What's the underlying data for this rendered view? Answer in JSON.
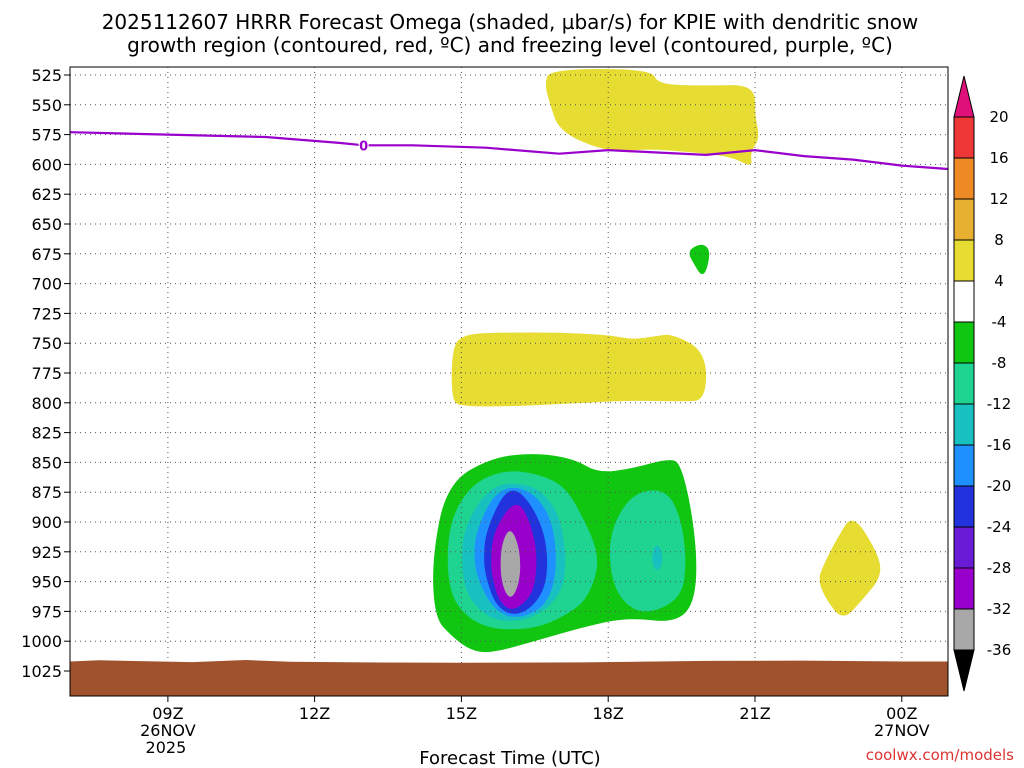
{
  "chart_data": {
    "type": "time-height contour",
    "title_line1": "2025112607 HRRR Forecast Omega (shaded, µbar/s) for KPIE with dendritic snow",
    "title_line2": "growth region (contoured, red, ºC) and freezing level (contoured, purple, ºC)",
    "xlabel": "Forecast Time (UTC)",
    "x_range_hours": [
      7,
      25
    ],
    "y_range_hpa": [
      520,
      1025
    ],
    "grid": true,
    "y_ticks": [
      525,
      550,
      575,
      600,
      625,
      650,
      675,
      700,
      725,
      750,
      775,
      800,
      825,
      850,
      875,
      900,
      925,
      950,
      975,
      1000,
      1025
    ],
    "y_tick_labels": [
      "525",
      "550",
      "575",
      "600",
      "625",
      "650",
      "675",
      "700",
      "725",
      "750",
      "775",
      "800",
      "825",
      "850",
      "875",
      "900",
      "925",
      "950",
      "975",
      "1000",
      "1025"
    ],
    "x_ticks": [
      {
        "hour": 9,
        "label": "09Z",
        "date": "26NOV",
        "year": "2025"
      },
      {
        "hour": 12,
        "label": "12Z",
        "date": "",
        "year": ""
      },
      {
        "hour": 15,
        "label": "15Z",
        "date": "",
        "year": ""
      },
      {
        "hour": 18,
        "label": "18Z",
        "date": "",
        "year": ""
      },
      {
        "hour": 21,
        "label": "21Z",
        "date": "",
        "year": ""
      },
      {
        "hour": 24,
        "label": "00Z",
        "date": "27NOV",
        "year": ""
      }
    ],
    "freezing_level": {
      "label": "0",
      "color": "#9900cc",
      "points": [
        [
          7.0,
          573
        ],
        [
          9.0,
          575
        ],
        [
          11.0,
          577
        ],
        [
          12.5,
          582
        ],
        [
          13.0,
          584
        ],
        [
          14.0,
          584
        ],
        [
          15.5,
          586
        ],
        [
          17.0,
          591
        ],
        [
          18.0,
          588
        ],
        [
          19.0,
          590
        ],
        [
          20.0,
          592
        ],
        [
          21.0,
          588
        ],
        [
          22.0,
          593
        ],
        [
          23.0,
          596
        ],
        [
          24.0,
          601
        ],
        [
          25.0,
          604
        ]
      ]
    },
    "colorbar": {
      "levels": [
        -36,
        -32,
        -28,
        -24,
        -20,
        -16,
        -12,
        -8,
        -4,
        4,
        8,
        12,
        16,
        20
      ],
      "labels": [
        "-36",
        "-32",
        "-28",
        "-24",
        "-20",
        "-16",
        "-12",
        "-8",
        "-4",
        "4",
        "8",
        "12",
        "16",
        "20"
      ],
      "colors": [
        "#a8a8a8",
        "#9900cc",
        "#6a1bd6",
        "#2233dd",
        "#1e90ff",
        "#18c0c0",
        "#1ed490",
        "#11c611",
        "#ffffff",
        "#e6dc32",
        "#e8b030",
        "#ee8a26",
        "#ee3838"
      ],
      "under_color": "#000000",
      "over_color": "#e0107a"
    },
    "shaded_regions": [
      {
        "name": "upper-ascent",
        "value": 4,
        "color": "#e6dc32",
        "points": [
          [
            16.8,
            520
          ],
          [
            18.9,
            520
          ],
          [
            19.0,
            533
          ],
          [
            20.0,
            534
          ],
          [
            21.0,
            533
          ],
          [
            21.0,
            560
          ],
          [
            21.1,
            578
          ],
          [
            20.9,
            590
          ],
          [
            20.95,
            603
          ],
          [
            20.5,
            593
          ],
          [
            19.5,
            589
          ],
          [
            18.8,
            587
          ],
          [
            18.0,
            590
          ],
          [
            17.0,
            573
          ],
          [
            16.8,
            548
          ],
          [
            16.7,
            533
          ]
        ]
      },
      {
        "name": "small-descent-700",
        "value": -6,
        "color": "#11c611",
        "points": [
          [
            19.7,
            670
          ],
          [
            19.95,
            666
          ],
          [
            20.1,
            674
          ],
          [
            19.95,
            697
          ],
          [
            19.7,
            680
          ],
          [
            19.65,
            675
          ]
        ]
      },
      {
        "name": "mid-ascent-775",
        "value": 5,
        "color": "#e6dc32",
        "points": [
          [
            14.8,
            757
          ],
          [
            15.0,
            742
          ],
          [
            16.0,
            741
          ],
          [
            17.0,
            741
          ],
          [
            18.0,
            743
          ],
          [
            18.5,
            747
          ],
          [
            19.0,
            744
          ],
          [
            19.3,
            742
          ],
          [
            20.0,
            757
          ],
          [
            20.0,
            798
          ],
          [
            19.5,
            799
          ],
          [
            18.5,
            798
          ],
          [
            17.0,
            801
          ],
          [
            16.0,
            803
          ],
          [
            15.0,
            803
          ],
          [
            14.8,
            798
          ]
        ]
      },
      {
        "name": "descent-green",
        "value": -6,
        "color": "#11c611",
        "points": [
          [
            14.4,
            930
          ],
          [
            14.7,
            868
          ],
          [
            15.6,
            846
          ],
          [
            16.5,
            842
          ],
          [
            17.3,
            847
          ],
          [
            17.8,
            859
          ],
          [
            18.5,
            855
          ],
          [
            19.2,
            847
          ],
          [
            19.5,
            850
          ],
          [
            19.8,
            913
          ],
          [
            19.8,
            965
          ],
          [
            19.4,
            985
          ],
          [
            18.4,
            980
          ],
          [
            17.5,
            988
          ],
          [
            16.5,
            1000
          ],
          [
            15.6,
            1010
          ],
          [
            15.2,
            1008
          ],
          [
            14.8,
            996
          ],
          [
            14.45,
            980
          ]
        ]
      },
      {
        "name": "descent-teal-right",
        "value": -10,
        "color": "#1ed490",
        "points": [
          [
            18.2,
            893
          ],
          [
            18.6,
            874
          ],
          [
            19.2,
            873
          ],
          [
            19.5,
            898
          ],
          [
            19.6,
            935
          ],
          [
            19.5,
            962
          ],
          [
            19.0,
            975
          ],
          [
            18.5,
            975
          ],
          [
            18.1,
            955
          ],
          [
            18.0,
            920
          ]
        ]
      },
      {
        "name": "descent-teal",
        "value": -10,
        "color": "#1ed490",
        "points": [
          [
            14.75,
            900
          ],
          [
            15.2,
            868
          ],
          [
            15.9,
            856
          ],
          [
            16.6,
            860
          ],
          [
            17.1,
            870
          ],
          [
            17.45,
            893
          ],
          [
            17.85,
            930
          ],
          [
            17.6,
            963
          ],
          [
            17.2,
            977
          ],
          [
            16.5,
            990
          ],
          [
            15.5,
            990
          ],
          [
            14.9,
            972
          ],
          [
            14.7,
            945
          ]
        ]
      },
      {
        "name": "descent-cyan",
        "value": -14,
        "color": "#18c0c0",
        "points": [
          [
            15.05,
            905
          ],
          [
            15.5,
            874
          ],
          [
            16.0,
            866
          ],
          [
            16.6,
            872
          ],
          [
            17.0,
            893
          ],
          [
            17.15,
            930
          ],
          [
            17.05,
            962
          ],
          [
            16.4,
            983
          ],
          [
            15.6,
            983
          ],
          [
            15.1,
            962
          ],
          [
            15.0,
            935
          ]
        ]
      },
      {
        "name": "descent-blue",
        "value": -18,
        "color": "#1e90ff",
        "points": [
          [
            15.3,
            908
          ],
          [
            15.65,
            877
          ],
          [
            16.1,
            869
          ],
          [
            16.6,
            880
          ],
          [
            16.9,
            905
          ],
          [
            16.95,
            945
          ],
          [
            16.7,
            972
          ],
          [
            16.1,
            982
          ],
          [
            15.65,
            973
          ],
          [
            15.35,
            950
          ],
          [
            15.25,
            930
          ]
        ]
      },
      {
        "name": "descent-dark-blue",
        "value": -22,
        "color": "#2233dd",
        "points": [
          [
            15.5,
            908
          ],
          [
            15.85,
            876
          ],
          [
            16.15,
            872
          ],
          [
            16.5,
            890
          ],
          [
            16.75,
            917
          ],
          [
            16.75,
            952
          ],
          [
            16.45,
            972
          ],
          [
            16.05,
            979
          ],
          [
            15.7,
            970
          ],
          [
            15.5,
            947
          ],
          [
            15.45,
            930
          ]
        ]
      },
      {
        "name": "descent-purple",
        "value": -28,
        "color": "#9900cc",
        "points": [
          [
            15.65,
            910
          ],
          [
            15.95,
            888
          ],
          [
            16.2,
            884
          ],
          [
            16.4,
            900
          ],
          [
            16.55,
            925
          ],
          [
            16.5,
            955
          ],
          [
            16.3,
            968
          ],
          [
            16.0,
            975
          ],
          [
            15.75,
            965
          ],
          [
            15.62,
            945
          ],
          [
            15.6,
            930
          ]
        ]
      },
      {
        "name": "descent-gray",
        "value": -32,
        "color": "#a8a8a8",
        "points": [
          [
            15.8,
            920
          ],
          [
            16.0,
            903
          ],
          [
            16.2,
            923
          ],
          [
            16.2,
            950
          ],
          [
            16.0,
            967
          ],
          [
            15.8,
            950
          ]
        ]
      },
      {
        "name": "ascent-far-right",
        "value": 5,
        "color": "#e6dc32",
        "points": [
          [
            22.35,
            940
          ],
          [
            22.7,
            912
          ],
          [
            23.0,
            893
          ],
          [
            23.5,
            925
          ],
          [
            23.6,
            945
          ],
          [
            23.2,
            965
          ],
          [
            22.8,
            983
          ],
          [
            22.45,
            965
          ],
          [
            22.3,
            950
          ]
        ]
      }
    ],
    "small_teal_spot": {
      "value": -12,
      "color": "#18c0c0",
      "center": [
        19.0,
        930
      ]
    },
    "terrain": {
      "color": "#a0522d",
      "top_hpa": 1017
    }
  },
  "watermark": {
    "text": "coolwx.com/models",
    "color": "#dd3333"
  }
}
